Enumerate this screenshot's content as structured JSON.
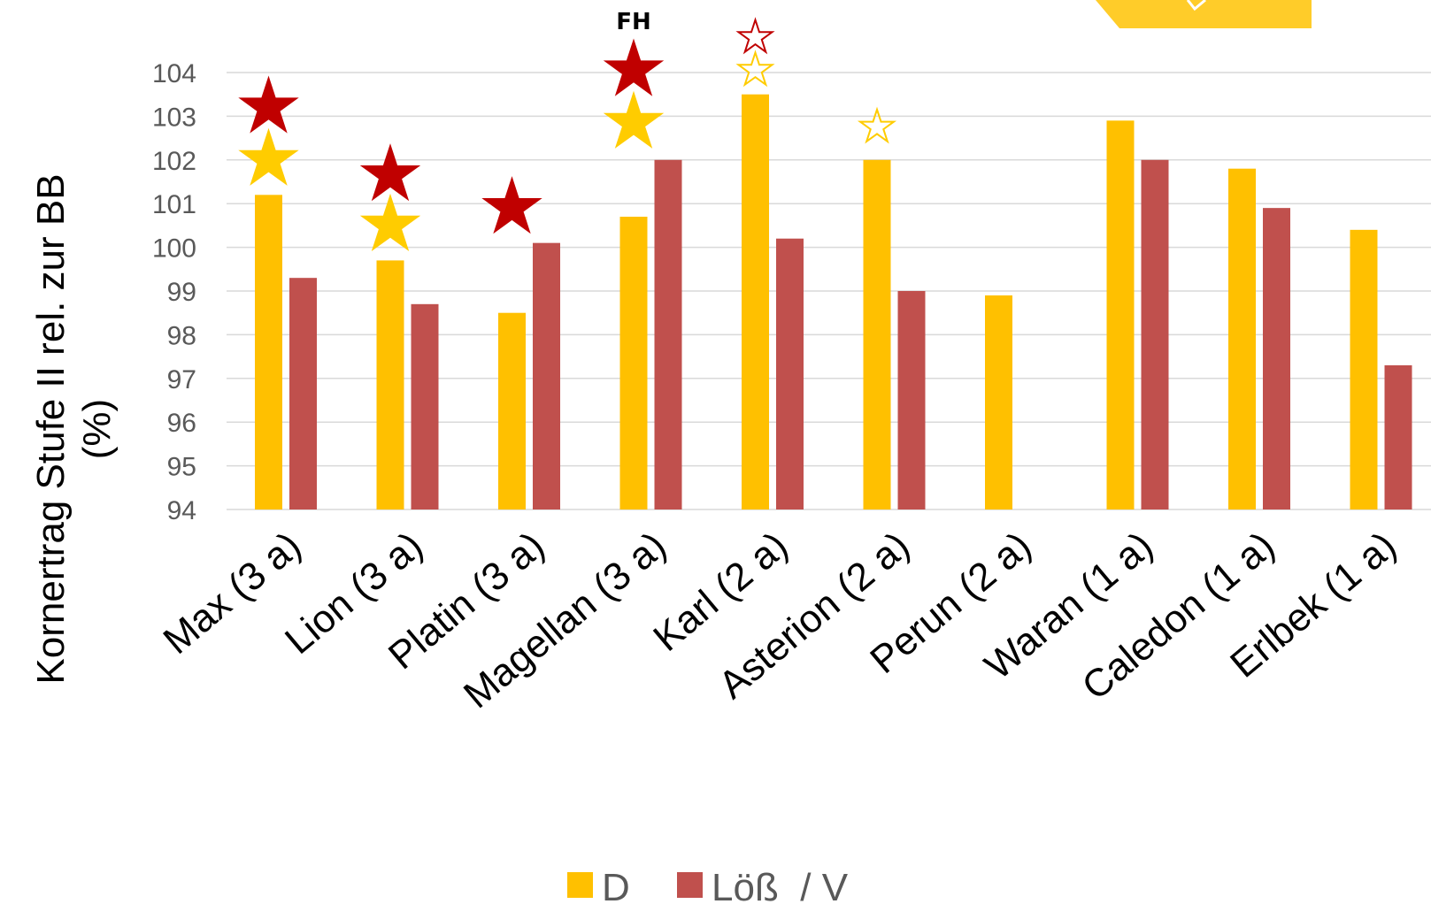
{
  "chart_data": {
    "type": "bar",
    "title": "",
    "xlabel": "",
    "ylabel_line1": "Kornertrag Stufe II  rel. zur BB",
    "ylabel_line2": "(%)",
    "ylim": [
      94,
      104
    ],
    "yticks": [
      "94",
      "95",
      "96",
      "97",
      "98",
      "99",
      "100",
      "101",
      "102",
      "103",
      "104"
    ],
    "grid": "horizontal",
    "legend_position": "bottom-center",
    "categories": [
      "Max (3 a)",
      "Lion (3 a)",
      "Platin (3 a)",
      "Magellan (3 a)",
      "Karl (2 a)",
      "Asterion (2 a)",
      "Perun (2 a)",
      "Waran (1 a)",
      "Caledon (1 a)",
      "Erlbek (1 a)"
    ],
    "series": [
      {
        "name": "D",
        "color": "#FFC000",
        "values": [
          101.2,
          99.7,
          98.5,
          100.7,
          103.5,
          102.0,
          98.9,
          102.9,
          101.8,
          100.4
        ]
      },
      {
        "name": "Löß  / V",
        "color": "#C0504D",
        "values": [
          99.3,
          98.7,
          100.1,
          102.0,
          100.2,
          99.0,
          null,
          102.0,
          100.9,
          97.3
        ]
      }
    ],
    "annotations": [
      {
        "category": 0,
        "symbol": "star-filled",
        "color": "#FFCC00",
        "at": 102.0
      },
      {
        "category": 0,
        "symbol": "star-filled",
        "color": "#C00000",
        "at": 103.2
      },
      {
        "category": 1,
        "symbol": "star-filled",
        "color": "#FFCC00",
        "at": 100.5
      },
      {
        "category": 1,
        "symbol": "star-filled",
        "color": "#C00000",
        "at": 101.65
      },
      {
        "category": 2,
        "symbol": "star-filled",
        "color": "#C00000",
        "at": 100.9
      },
      {
        "category": 3,
        "symbol": "star-filled",
        "color": "#FFCC00",
        "at": 102.85
      },
      {
        "category": 3,
        "symbol": "star-filled",
        "color": "#C00000",
        "at": 104.05
      },
      {
        "category": 4,
        "symbol": "star-outline",
        "color": "#FFCC00",
        "at": 104.05
      },
      {
        "category": 4,
        "symbol": "star-outline",
        "color": "#C00000",
        "at": 104.8
      },
      {
        "category": 5,
        "symbol": "star-outline",
        "color": "#FFCC00",
        "at": 102.75
      }
    ],
    "text_note": {
      "text": "FH",
      "category": 3
    }
  },
  "colors": {
    "logo": "#FFCC29",
    "grid": "#D9D9D9",
    "tick": "#595959"
  }
}
